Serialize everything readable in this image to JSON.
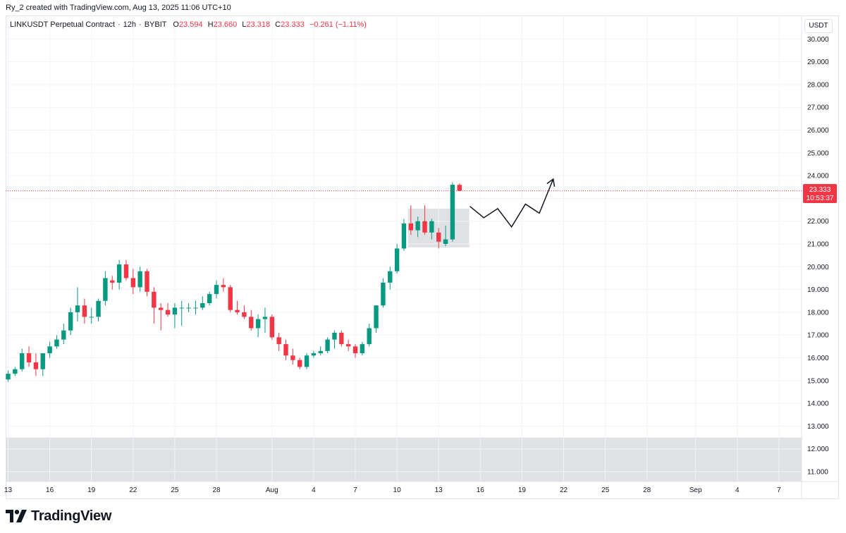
{
  "attribution": "Ry_2 created with TradingView.com, Aug 13, 2025 11:06 UTC+10",
  "legend": {
    "symbol": "LINKUSDT Perpetual Contract",
    "interval": "12h",
    "exchange": "BYBIT",
    "open_label": "O",
    "open": "23.594",
    "high_label": "H",
    "high": "23.660",
    "low_label": "L",
    "low": "23.318",
    "close_label": "C",
    "close": "23.333",
    "change": "−0.261 (−1.11%)"
  },
  "currency": "USDT",
  "price_label": {
    "value": "23.333",
    "countdown": "10:53:37"
  },
  "brand": {
    "name": "TradingView",
    "logo_icon": "tradingview-logo-icon"
  },
  "colors": {
    "up": "#089981",
    "down": "#f23645",
    "zone": "#dfe1e4",
    "grid": "#f0f3fa"
  },
  "chart_data": {
    "type": "candlestick",
    "title": "LINKUSDT Perpetual Contract · 12h · BYBIT",
    "x_index_range": [
      0,
      112
    ],
    "ylim": [
      10.4,
      30.8
    ],
    "y_ticks": [
      "11.000",
      "12.000",
      "13.000",
      "14.000",
      "15.000",
      "16.000",
      "17.000",
      "18.000",
      "19.000",
      "20.000",
      "21.000",
      "22.000",
      "23.000",
      "24.000",
      "25.000",
      "26.000",
      "27.000",
      "28.000",
      "29.000",
      "30.000"
    ],
    "x_ticks": [
      {
        "label": "13",
        "index": 0
      },
      {
        "label": "16",
        "index": 6
      },
      {
        "label": "19",
        "index": 12
      },
      {
        "label": "22",
        "index": 18
      },
      {
        "label": "25",
        "index": 24
      },
      {
        "label": "28",
        "index": 30
      },
      {
        "label": "Aug",
        "index": 38
      },
      {
        "label": "4",
        "index": 44
      },
      {
        "label": "7",
        "index": 50
      },
      {
        "label": "10",
        "index": 56
      },
      {
        "label": "13",
        "index": 62
      },
      {
        "label": "16",
        "index": 68
      },
      {
        "label": "19",
        "index": 74
      },
      {
        "label": "22",
        "index": 80
      },
      {
        "label": "25",
        "index": 86
      },
      {
        "label": "28",
        "index": 92
      },
      {
        "label": "Sep",
        "index": 99
      },
      {
        "label": "4",
        "index": 105
      },
      {
        "label": "7",
        "index": 111
      }
    ],
    "candles": [
      {
        "o": 15.05,
        "h": 15.45,
        "l": 14.95,
        "c": 15.3
      },
      {
        "o": 15.3,
        "h": 15.6,
        "l": 15.2,
        "c": 15.5
      },
      {
        "o": 15.5,
        "h": 16.4,
        "l": 15.4,
        "c": 16.2
      },
      {
        "o": 16.2,
        "h": 16.5,
        "l": 15.6,
        "c": 15.8
      },
      {
        "o": 15.8,
        "h": 16.2,
        "l": 15.2,
        "c": 15.5
      },
      {
        "o": 15.5,
        "h": 16.2,
        "l": 15.2,
        "c": 16.2
      },
      {
        "o": 16.2,
        "h": 16.7,
        "l": 16.0,
        "c": 16.5
      },
      {
        "o": 16.5,
        "h": 17.0,
        "l": 16.4,
        "c": 16.8
      },
      {
        "o": 16.8,
        "h": 17.5,
        "l": 16.6,
        "c": 17.2
      },
      {
        "o": 17.2,
        "h": 18.2,
        "l": 17.0,
        "c": 18.0
      },
      {
        "o": 18.0,
        "h": 19.1,
        "l": 17.6,
        "c": 18.3
      },
      {
        "o": 18.3,
        "h": 18.6,
        "l": 17.5,
        "c": 17.8
      },
      {
        "o": 17.8,
        "h": 18.2,
        "l": 17.5,
        "c": 17.8
      },
      {
        "o": 17.8,
        "h": 18.6,
        "l": 17.6,
        "c": 18.5
      },
      {
        "o": 18.5,
        "h": 19.8,
        "l": 18.3,
        "c": 19.5
      },
      {
        "o": 19.4,
        "h": 19.6,
        "l": 19.0,
        "c": 19.3
      },
      {
        "o": 19.3,
        "h": 20.3,
        "l": 19.0,
        "c": 20.1
      },
      {
        "o": 20.1,
        "h": 20.3,
        "l": 19.4,
        "c": 19.5
      },
      {
        "o": 19.5,
        "h": 19.9,
        "l": 18.8,
        "c": 19.1
      },
      {
        "o": 19.1,
        "h": 20.0,
        "l": 18.9,
        "c": 19.8
      },
      {
        "o": 19.8,
        "h": 19.9,
        "l": 18.7,
        "c": 18.9
      },
      {
        "o": 18.9,
        "h": 19.1,
        "l": 17.5,
        "c": 18.2
      },
      {
        "o": 18.2,
        "h": 18.4,
        "l": 17.2,
        "c": 18.1
      },
      {
        "o": 18.1,
        "h": 18.4,
        "l": 17.8,
        "c": 17.9
      },
      {
        "o": 17.9,
        "h": 18.4,
        "l": 17.3,
        "c": 18.2
      },
      {
        "o": 18.2,
        "h": 18.5,
        "l": 17.4,
        "c": 18.2
      },
      {
        "o": 18.2,
        "h": 18.4,
        "l": 18.0,
        "c": 18.2
      },
      {
        "o": 18.2,
        "h": 18.5,
        "l": 17.9,
        "c": 18.2
      },
      {
        "o": 18.2,
        "h": 18.7,
        "l": 18.1,
        "c": 18.4
      },
      {
        "o": 18.4,
        "h": 18.9,
        "l": 18.3,
        "c": 18.8
      },
      {
        "o": 18.8,
        "h": 19.4,
        "l": 18.6,
        "c": 19.2
      },
      {
        "o": 19.2,
        "h": 19.5,
        "l": 18.9,
        "c": 19.1
      },
      {
        "o": 19.1,
        "h": 19.2,
        "l": 18.0,
        "c": 18.1
      },
      {
        "o": 18.1,
        "h": 18.5,
        "l": 17.9,
        "c": 18.0
      },
      {
        "o": 18.0,
        "h": 18.3,
        "l": 17.7,
        "c": 17.8
      },
      {
        "o": 17.8,
        "h": 18.1,
        "l": 17.2,
        "c": 17.3
      },
      {
        "o": 17.3,
        "h": 17.9,
        "l": 16.9,
        "c": 17.7
      },
      {
        "o": 17.7,
        "h": 18.2,
        "l": 17.1,
        "c": 17.8
      },
      {
        "o": 17.8,
        "h": 17.9,
        "l": 16.8,
        "c": 16.9
      },
      {
        "o": 16.9,
        "h": 17.1,
        "l": 16.3,
        "c": 16.6
      },
      {
        "o": 16.6,
        "h": 16.8,
        "l": 15.9,
        "c": 16.1
      },
      {
        "o": 16.1,
        "h": 16.4,
        "l": 15.7,
        "c": 15.9
      },
      {
        "o": 15.9,
        "h": 16.0,
        "l": 15.5,
        "c": 15.6
      },
      {
        "o": 15.6,
        "h": 16.2,
        "l": 15.5,
        "c": 16.1
      },
      {
        "o": 16.1,
        "h": 16.3,
        "l": 16.0,
        "c": 16.2
      },
      {
        "o": 16.2,
        "h": 16.5,
        "l": 16.1,
        "c": 16.3
      },
      {
        "o": 16.3,
        "h": 16.9,
        "l": 16.2,
        "c": 16.8
      },
      {
        "o": 16.8,
        "h": 17.2,
        "l": 16.4,
        "c": 17.1
      },
      {
        "o": 17.1,
        "h": 17.2,
        "l": 16.5,
        "c": 16.6
      },
      {
        "o": 16.6,
        "h": 16.8,
        "l": 16.3,
        "c": 16.5
      },
      {
        "o": 16.5,
        "h": 16.6,
        "l": 16.0,
        "c": 16.2
      },
      {
        "o": 16.2,
        "h": 16.7,
        "l": 16.1,
        "c": 16.6
      },
      {
        "o": 16.6,
        "h": 17.5,
        "l": 16.5,
        "c": 17.3
      },
      {
        "o": 17.3,
        "h": 18.3,
        "l": 17.1,
        "c": 18.3
      },
      {
        "o": 18.3,
        "h": 19.5,
        "l": 18.2,
        "c": 19.3
      },
      {
        "o": 19.3,
        "h": 20.0,
        "l": 19.0,
        "c": 19.8
      },
      {
        "o": 19.8,
        "h": 21.0,
        "l": 19.7,
        "c": 20.8
      },
      {
        "o": 20.8,
        "h": 22.1,
        "l": 20.7,
        "c": 21.9
      },
      {
        "o": 21.9,
        "h": 22.7,
        "l": 21.4,
        "c": 21.6
      },
      {
        "o": 21.6,
        "h": 22.2,
        "l": 21.3,
        "c": 22.0
      },
      {
        "o": 22.0,
        "h": 22.7,
        "l": 21.4,
        "c": 21.5
      },
      {
        "o": 21.5,
        "h": 22.1,
        "l": 21.2,
        "c": 22.0
      },
      {
        "o": 21.5,
        "h": 21.7,
        "l": 20.8,
        "c": 21.1
      },
      {
        "o": 21.0,
        "h": 21.8,
        "l": 20.9,
        "c": 21.2
      },
      {
        "o": 21.2,
        "h": 23.7,
        "l": 21.1,
        "c": 23.6
      },
      {
        "o": 23.594,
        "h": 23.66,
        "l": 23.318,
        "c": 23.333
      }
    ],
    "annotations": {
      "demand_zone": {
        "x_start_index": 58,
        "x_end_index": 66,
        "y_low": 20.85,
        "y_high": 22.55
      },
      "lower_zone": {
        "x_start_index": 0,
        "x_end_index": 112,
        "y_low": 10.4,
        "y_high": 12.5
      },
      "projected_path": [
        {
          "index": 66.5,
          "price": 22.65
        },
        {
          "index": 68.5,
          "price": 22.15
        },
        {
          "index": 70.5,
          "price": 22.55
        },
        {
          "index": 72.5,
          "price": 21.75
        },
        {
          "index": 74.5,
          "price": 22.75
        },
        {
          "index": 76.5,
          "price": 22.35
        },
        {
          "index": 78.5,
          "price": 23.85
        }
      ],
      "last_price_line": 23.333
    }
  }
}
